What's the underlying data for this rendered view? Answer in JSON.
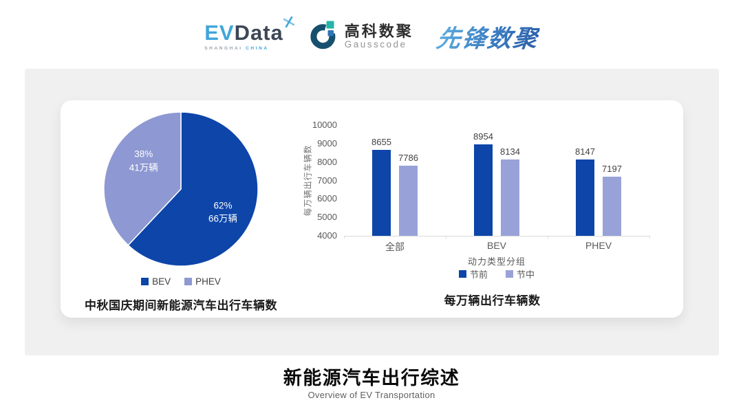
{
  "header": {
    "logos": {
      "evdata": {
        "ev": "EV",
        "data": "Data",
        "sub_left": "SHANGHAI",
        "sub_right": "CHINA"
      },
      "gausscode": {
        "cn": "高科数聚",
        "en": "Gausscode"
      },
      "pioneer": {
        "text": "先锋数聚"
      }
    }
  },
  "chart_data": [
    {
      "type": "pie",
      "title": "中秋国庆期间新能源汽车出行车辆数",
      "slices": [
        {
          "label": "BEV",
          "percent": 62,
          "percent_label": "62%",
          "amount_label": "66万辆",
          "color": "#0d45a9"
        },
        {
          "label": "PHEV",
          "percent": 38,
          "percent_label": "38%",
          "amount_label": "41万辆",
          "color": "#8e98d2"
        }
      ],
      "legend_position": "bottom",
      "start_angle": "12-oclock",
      "direction": "clockwise"
    },
    {
      "type": "bar",
      "title": "每万辆出行车辆数",
      "categories": [
        "全部",
        "BEV",
        "PHEV"
      ],
      "series": [
        {
          "name": "节前",
          "values": [
            8655,
            8954,
            8147
          ],
          "color": "#0d45a9"
        },
        {
          "name": "节中",
          "values": [
            7786,
            8134,
            7197
          ],
          "color": "#98a2d8"
        }
      ],
      "xlabel": "动力类型分组",
      "ylabel": "每万辆出行车辆数",
      "ylim": [
        4000,
        10000
      ],
      "yticks": [
        4000,
        5000,
        6000,
        7000,
        8000,
        9000,
        10000
      ],
      "grid": false,
      "legend_position": "bottom",
      "bar_value_labels": true
    }
  ],
  "footer": {
    "title": "新能源汽车出行综述",
    "subtitle": "Overview of EV Transportation"
  }
}
